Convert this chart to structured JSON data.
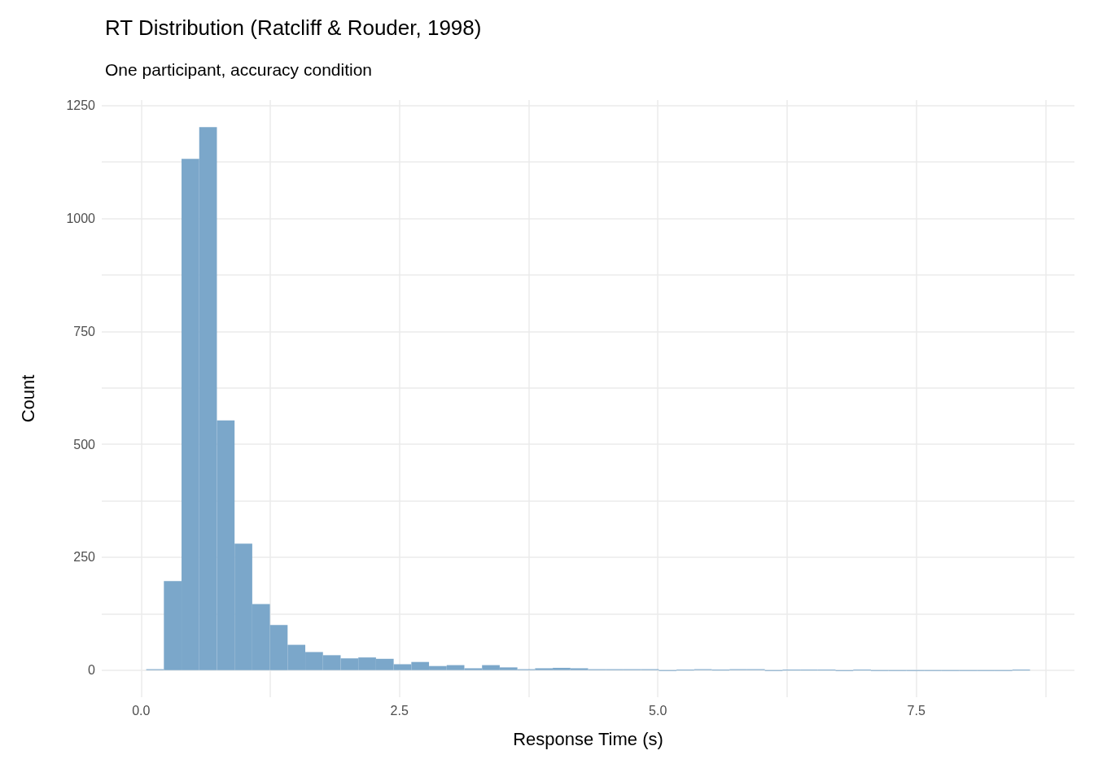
{
  "chart_data": {
    "type": "histogram",
    "title": "RT Distribution (Ratcliff & Rouder, 1998)",
    "subtitle": "One participant, accuracy condition",
    "xlabel": "Response Time (s)",
    "ylabel": "Count",
    "bins": [
      0.05,
      0.221,
      0.392,
      0.563,
      0.734,
      0.905,
      1.076,
      1.247,
      1.418,
      1.589,
      1.76,
      1.931,
      2.102,
      2.273,
      2.444,
      2.615,
      2.786,
      2.957,
      3.128,
      3.299,
      3.47,
      3.641,
      3.812,
      3.983,
      4.154,
      4.325,
      4.496,
      4.667,
      4.838,
      5.009,
      5.18,
      5.351,
      5.522,
      5.693,
      5.864,
      6.035,
      6.206,
      6.377,
      6.548,
      6.719,
      6.89,
      7.061,
      7.232,
      7.403,
      7.574,
      7.745,
      7.916,
      8.087,
      8.258,
      8.429,
      8.6
    ],
    "values": [
      2,
      197,
      1132,
      1202,
      553,
      280,
      146,
      100,
      56,
      40,
      33,
      26,
      28,
      25,
      13,
      18,
      9,
      11,
      4,
      11,
      6,
      2,
      4,
      5,
      4,
      2,
      2,
      2,
      2,
      0,
      1,
      2,
      1,
      2,
      2,
      0,
      1,
      1,
      1,
      0,
      1,
      0,
      0,
      0,
      0,
      0,
      0,
      0,
      0,
      1
    ],
    "color": "#7ba7ca",
    "xlim": [
      -0.38,
      9.03
    ],
    "xticks": [
      {
        "value": 0,
        "label": "0.0"
      },
      {
        "value": 1.25,
        "label": null
      },
      {
        "value": 2.5,
        "label": "2.5"
      },
      {
        "value": 3.75,
        "label": null
      },
      {
        "value": 5,
        "label": "5.0"
      },
      {
        "value": 6.25,
        "label": null
      },
      {
        "value": 7.5,
        "label": "7.5"
      },
      {
        "value": 8.75,
        "label": null
      }
    ],
    "ylim": [
      -60,
      1262
    ],
    "yticks": [
      0,
      {
        "value": 125,
        "label": null
      },
      250,
      {
        "value": 375,
        "label": null
      },
      500,
      {
        "value": 625,
        "label": null
      },
      750,
      {
        "value": 875,
        "label": null
      },
      1000,
      {
        "value": 1125,
        "label": null
      },
      1250
    ],
    "grid": true
  }
}
